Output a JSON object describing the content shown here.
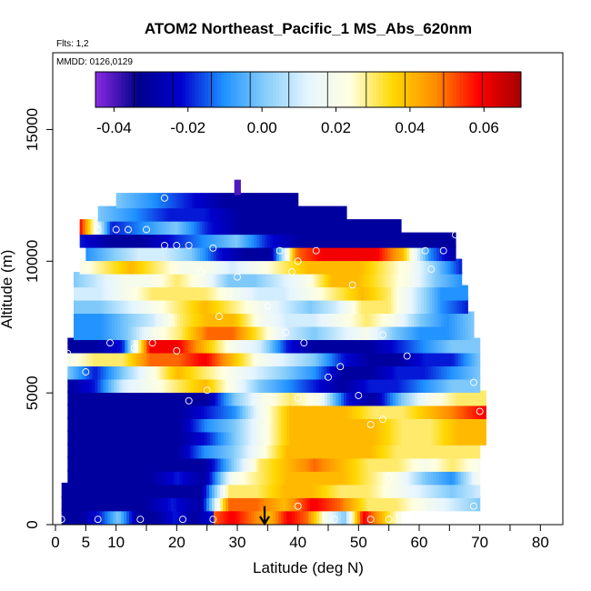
{
  "chart_data": {
    "type": "heatmap",
    "title": "ATOM2 Northeast_Pacific_1 MS_Abs_620nm",
    "flights_label": "Flts: 1,2",
    "dates_label": "MMDD: 0126,0129",
    "xlabel": "Latitude (deg N)",
    "ylabel": "Altitude (m)",
    "xlim": [
      0,
      84
    ],
    "ylim": [
      0,
      17500
    ],
    "x_ticks": [
      0,
      5,
      10,
      20,
      30,
      40,
      50,
      60,
      70,
      80
    ],
    "y_ticks": [
      0,
      5000,
      10000,
      15000
    ],
    "grid": false,
    "colorbar": {
      "placement": "top",
      "range": [
        -0.045,
        0.07
      ],
      "ticks": [
        -0.04,
        -0.02,
        0.0,
        0.02,
        0.04,
        0.06
      ],
      "tick_labels": [
        "-0.04",
        "-0.02",
        "0.00",
        "0.02",
        "0.04",
        "0.06"
      ],
      "colors": [
        "#8a2be2",
        "#00008b",
        "#0000cd",
        "#1e90ff",
        "#87cefa",
        "#e6f5ff",
        "#ffffe0",
        "#ffd700",
        "#ff8c00",
        "#ff0000",
        "#a50000"
      ]
    },
    "marker": {
      "label": "arrow",
      "latitude": 34.5
    },
    "bands": [
      {
        "alt": 300,
        "lat": [
          26,
          57
        ],
        "values": [
          0.05,
          0.06,
          0.05,
          0.04,
          0.06,
          0.05,
          0.02,
          0.0,
          0.06,
          0.04,
          0.02
        ]
      },
      {
        "alt": 300,
        "lat": [
          1,
          26
        ],
        "values": [
          -0.03,
          -0.03,
          -0.02,
          0.0,
          -0.03,
          -0.03,
          -0.02,
          -0.03,
          -0.02
        ]
      },
      {
        "alt": 800,
        "lat": [
          1,
          70
        ],
        "values": [
          -0.03,
          -0.03,
          -0.03,
          -0.03,
          -0.02,
          -0.03,
          0.05,
          0.05,
          0.04,
          0.06,
          0.05,
          0.03,
          0.03,
          0.02,
          0.01,
          0.0
        ]
      },
      {
        "alt": 1300,
        "lat": [
          1,
          70
        ],
        "values": [
          -0.03,
          -0.03,
          -0.03,
          -0.03,
          -0.03,
          -0.03,
          0.03,
          0.03,
          0.04,
          0.04,
          0.03,
          0.03,
          0.02,
          0.01,
          0.0,
          0.01
        ]
      },
      {
        "alt": 1800,
        "lat": [
          2,
          70
        ],
        "values": [
          -0.03,
          -0.03,
          -0.03,
          -0.03,
          -0.02,
          -0.03,
          0.02,
          0.03,
          0.04,
          0.04,
          0.04,
          0.03,
          0.02,
          0.0,
          -0.01,
          0.02
        ]
      },
      {
        "alt": 2300,
        "lat": [
          2,
          70
        ],
        "values": [
          -0.03,
          -0.03,
          -0.03,
          -0.03,
          -0.03,
          -0.03,
          0.0,
          0.03,
          0.04,
          0.05,
          0.04,
          0.03,
          0.03,
          0.02,
          0.03,
          0.02
        ]
      },
      {
        "alt": 2800,
        "lat": [
          2,
          70
        ],
        "values": [
          -0.03,
          -0.03,
          -0.03,
          -0.03,
          -0.03,
          -0.01,
          0.0,
          0.02,
          0.04,
          0.04,
          0.04,
          0.04,
          0.03,
          0.03,
          0.03,
          0.03
        ]
      },
      {
        "alt": 3300,
        "lat": [
          2,
          71
        ],
        "values": [
          -0.03,
          -0.03,
          -0.03,
          -0.03,
          -0.03,
          -0.02,
          0.0,
          0.02,
          0.04,
          0.04,
          0.04,
          0.04,
          0.03,
          0.03,
          0.04,
          0.04
        ]
      },
      {
        "alt": 3800,
        "lat": [
          2,
          71
        ],
        "values": [
          -0.03,
          -0.03,
          -0.03,
          -0.03,
          -0.03,
          -0.01,
          0.0,
          0.02,
          0.04,
          0.04,
          0.04,
          0.04,
          0.03,
          0.03,
          0.04,
          0.04
        ]
      },
      {
        "alt": 4300,
        "lat": [
          2,
          71
        ],
        "values": [
          -0.03,
          -0.03,
          -0.03,
          -0.03,
          -0.03,
          -0.02,
          -0.01,
          0.02,
          0.04,
          0.04,
          0.04,
          0.03,
          0.03,
          0.04,
          0.05,
          0.06
        ]
      },
      {
        "alt": 4800,
        "lat": [
          2,
          71
        ],
        "values": [
          -0.03,
          -0.03,
          -0.03,
          -0.03,
          -0.03,
          -0.03,
          0.0,
          0.02,
          0.03,
          0.02,
          -0.02,
          -0.03,
          0.0,
          0.02,
          0.03,
          0.03
        ]
      },
      {
        "alt": 5300,
        "lat": [
          2,
          70
        ],
        "values": [
          -0.03,
          -0.02,
          0.01,
          0.02,
          0.03,
          0.04,
          0.02,
          0.0,
          -0.01,
          -0.02,
          -0.03,
          -0.02,
          -0.02,
          -0.01,
          0.0,
          0.0
        ]
      },
      {
        "alt": 5800,
        "lat": [
          2,
          70
        ],
        "values": [
          0.0,
          -0.02,
          0.0,
          0.02,
          0.04,
          0.03,
          0.02,
          0.01,
          0.0,
          -0.01,
          -0.03,
          -0.03,
          -0.02,
          -0.02,
          -0.01,
          0.0
        ]
      },
      {
        "alt": 6300,
        "lat": [
          2,
          70
        ],
        "values": [
          0.02,
          0.03,
          0.03,
          0.05,
          0.05,
          0.06,
          0.04,
          0.02,
          0.01,
          0.0,
          -0.02,
          -0.03,
          -0.03,
          -0.02,
          -0.02,
          0.0
        ]
      },
      {
        "alt": 6800,
        "lat": [
          2,
          70
        ],
        "values": [
          -0.03,
          -0.03,
          -0.02,
          0.06,
          0.06,
          0.04,
          0.02,
          0.01,
          -0.02,
          -0.03,
          -0.03,
          -0.03,
          -0.02,
          -0.01,
          0.0,
          0.0
        ]
      },
      {
        "alt": 7300,
        "lat": [
          3,
          69
        ],
        "values": [
          -0.01,
          -0.01,
          0.0,
          0.02,
          0.03,
          0.05,
          0.05,
          0.03,
          0.01,
          0.0,
          0.01,
          0.02,
          0.0,
          -0.01,
          -0.01,
          0.0
        ]
      },
      {
        "alt": 7800,
        "lat": [
          3,
          69
        ],
        "values": [
          -0.01,
          -0.01,
          0.0,
          0.01,
          0.03,
          0.04,
          0.04,
          0.02,
          0.01,
          0.01,
          0.02,
          0.03,
          0.02,
          0.0,
          -0.01,
          0.0
        ]
      },
      {
        "alt": 8300,
        "lat": [
          3,
          68
        ],
        "values": [
          0.0,
          0.0,
          0.01,
          0.02,
          0.03,
          0.04,
          0.03,
          0.02,
          0.01,
          0.0,
          0.01,
          0.03,
          0.03,
          0.01,
          -0.01,
          -0.02
        ]
      },
      {
        "alt": 8800,
        "lat": [
          3,
          68
        ],
        "values": [
          0.01,
          0.01,
          0.02,
          0.03,
          0.03,
          0.03,
          0.02,
          0.01,
          0.01,
          0.02,
          0.03,
          0.04,
          0.03,
          0.01,
          -0.01,
          -0.01
        ]
      },
      {
        "alt": 9300,
        "lat": [
          3,
          67
        ],
        "values": [
          0.0,
          0.01,
          0.02,
          0.02,
          0.03,
          0.02,
          0.0,
          0.0,
          0.01,
          0.02,
          0.04,
          0.04,
          0.03,
          0.02,
          0.0,
          -0.01
        ]
      },
      {
        "alt": 9800,
        "lat": [
          4,
          67
        ],
        "values": [
          0.02,
          0.03,
          0.04,
          0.03,
          0.02,
          0.02,
          0.01,
          0.02,
          0.03,
          0.04,
          0.04,
          0.04,
          0.03,
          0.02,
          0.0,
          -0.02
        ]
      },
      {
        "alt": 10300,
        "lat": [
          5,
          66
        ],
        "values": [
          -0.01,
          0.0,
          0.01,
          0.01,
          0.0,
          -0.02,
          -0.03,
          -0.03,
          0.05,
          0.06,
          0.06,
          0.06,
          0.04,
          -0.01,
          -0.03
        ]
      },
      {
        "alt": 10800,
        "lat": [
          4,
          66
        ],
        "values": [
          -0.02,
          -0.03,
          -0.03,
          -0.02,
          -0.01,
          0.0,
          -0.02,
          -0.03,
          -0.03,
          -0.03,
          -0.03,
          -0.03,
          -0.03
        ]
      },
      {
        "alt": 11300,
        "lat": [
          4,
          57
        ],
        "values": [
          0.06,
          -0.02,
          -0.01,
          0.0,
          -0.02,
          -0.03,
          -0.03,
          -0.03,
          -0.03,
          -0.03,
          -0.03
        ]
      },
      {
        "alt": 11800,
        "lat": [
          7,
          48
        ],
        "values": [
          0.0,
          -0.01,
          -0.02,
          -0.02,
          -0.03,
          -0.03,
          -0.03,
          -0.03
        ]
      },
      {
        "alt": 12300,
        "lat": [
          10,
          40
        ],
        "values": [
          0.0,
          -0.01,
          -0.02,
          -0.03,
          -0.03,
          -0.03
        ]
      },
      {
        "alt": 12800,
        "lat": [
          29.5,
          30.5
        ],
        "values": [
          -0.04
        ]
      }
    ],
    "points": [
      {
        "lat": 1,
        "alt": 200
      },
      {
        "lat": 7,
        "alt": 200
      },
      {
        "lat": 14,
        "alt": 200
      },
      {
        "lat": 21,
        "alt": 200
      },
      {
        "lat": 26,
        "alt": 200
      },
      {
        "lat": 40,
        "alt": 700
      },
      {
        "lat": 46,
        "alt": 200
      },
      {
        "lat": 52,
        "alt": 200
      },
      {
        "lat": 55,
        "alt": 200
      },
      {
        "lat": 69,
        "alt": 700
      },
      {
        "lat": 55,
        "alt": 1800
      },
      {
        "lat": 52,
        "alt": 3800
      },
      {
        "lat": 54,
        "alt": 4000
      },
      {
        "lat": 70,
        "alt": 4300
      },
      {
        "lat": 22,
        "alt": 4700
      },
      {
        "lat": 40,
        "alt": 4800
      },
      {
        "lat": 50,
        "alt": 4900
      },
      {
        "lat": 25,
        "alt": 5100
      },
      {
        "lat": 5,
        "alt": 5800
      },
      {
        "lat": 45,
        "alt": 5600
      },
      {
        "lat": 47,
        "alt": 6000
      },
      {
        "lat": 69,
        "alt": 5400
      },
      {
        "lat": 2,
        "alt": 6500
      },
      {
        "lat": 13,
        "alt": 6700
      },
      {
        "lat": 16,
        "alt": 6900
      },
      {
        "lat": 20,
        "alt": 6600
      },
      {
        "lat": 9,
        "alt": 6900
      },
      {
        "lat": 41,
        "alt": 6900
      },
      {
        "lat": 58,
        "alt": 6400
      },
      {
        "lat": 27,
        "alt": 7900
      },
      {
        "lat": 35,
        "alt": 8300
      },
      {
        "lat": 38,
        "alt": 7300
      },
      {
        "lat": 54,
        "alt": 7200
      },
      {
        "lat": 30,
        "alt": 9400
      },
      {
        "lat": 24,
        "alt": 9600
      },
      {
        "lat": 39,
        "alt": 9600
      },
      {
        "lat": 49,
        "alt": 9100
      },
      {
        "lat": 62,
        "alt": 9700
      },
      {
        "lat": 40,
        "alt": 10000
      },
      {
        "lat": 43,
        "alt": 10400
      },
      {
        "lat": 61,
        "alt": 10400
      },
      {
        "lat": 64,
        "alt": 10400
      },
      {
        "lat": 18,
        "alt": 10600
      },
      {
        "lat": 20,
        "alt": 10600
      },
      {
        "lat": 22,
        "alt": 10600
      },
      {
        "lat": 26,
        "alt": 10500
      },
      {
        "lat": 37,
        "alt": 10400
      },
      {
        "lat": 7,
        "alt": 11200
      },
      {
        "lat": 10,
        "alt": 11200
      },
      {
        "lat": 12,
        "alt": 11200
      },
      {
        "lat": 15,
        "alt": 11200
      },
      {
        "lat": 18,
        "alt": 12400
      },
      {
        "lat": 66,
        "alt": 11000
      }
    ]
  }
}
